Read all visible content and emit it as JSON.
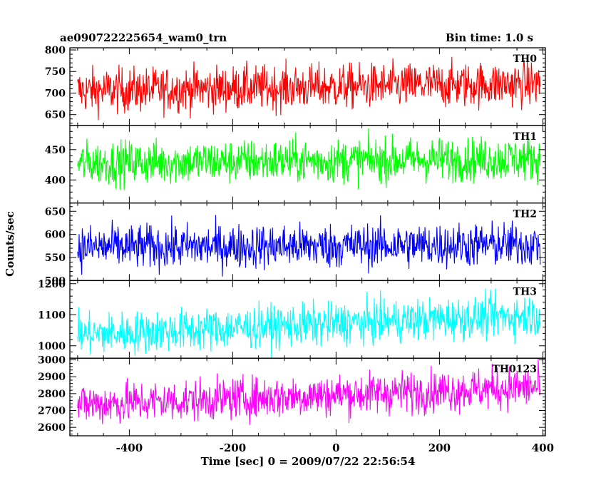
{
  "header": {
    "left_text": "ae090722225654_wam0_trn",
    "right_text": "Bin time: 1.0 s"
  },
  "chart_data": {
    "type": "line",
    "xlabel": "Time [sec] 0 = 2009/07/22 22:56:54",
    "ylabel": "Counts/sec",
    "xlim": [
      -515,
      405
    ],
    "x_ticks": [
      -400,
      -200,
      0,
      200,
      400
    ],
    "x_start": -500,
    "x_end": 395,
    "x_step": 1,
    "panels": [
      {
        "name": "TH0",
        "color": "#ff0000",
        "ylim": [
          625,
          805
        ],
        "yticks": [
          650,
          700,
          750,
          800
        ],
        "start_mean": 705,
        "end_mean": 722,
        "noise_sd": 26
      },
      {
        "name": "TH1",
        "color": "#00ff00",
        "ylim": [
          362,
          490
        ],
        "yticks": [
          400,
          450
        ],
        "start_mean": 428,
        "end_mean": 435,
        "noise_sd": 18
      },
      {
        "name": "TH2",
        "color": "#0000ff",
        "ylim": [
          500,
          668
        ],
        "yticks": [
          500,
          550,
          600,
          650
        ],
        "start_mean": 572,
        "end_mean": 578,
        "noise_sd": 24
      },
      {
        "name": "TH3",
        "color": "#00ffff",
        "ylim": [
          960,
          1210
        ],
        "yticks": [
          1000,
          1100,
          1200
        ],
        "start_mean": 1035,
        "end_mean": 1100,
        "noise_sd": 34
      },
      {
        "name": "TH0123",
        "color": "#ff00ff",
        "ylim": [
          2550,
          3010
        ],
        "yticks": [
          2600,
          2700,
          2800,
          2900,
          3000
        ],
        "start_mean": 2735,
        "end_mean": 2840,
        "noise_sd": 62
      }
    ]
  }
}
